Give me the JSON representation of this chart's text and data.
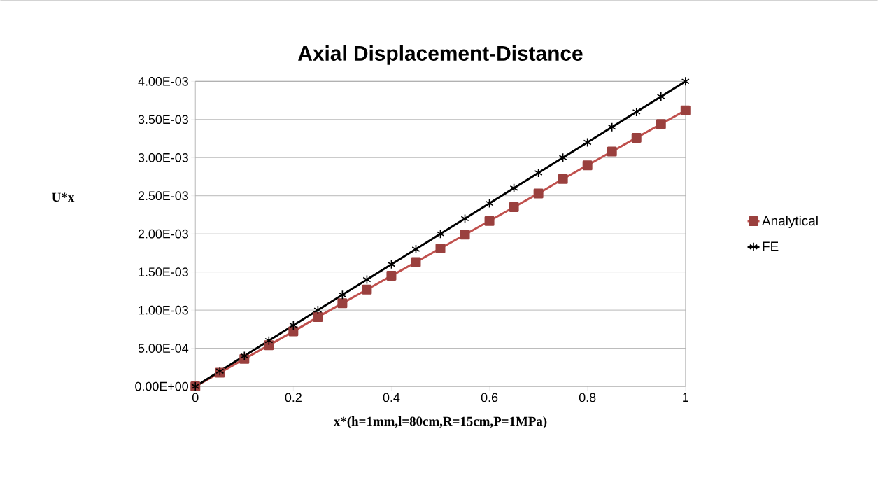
{
  "chart_data": {
    "type": "line",
    "title": "Axial Displacement-Distance",
    "xlabel": "x*(h=1mm,l=80cm,R=15cm,P=1MPa)",
    "ylabel": "U*x",
    "x": [
      0,
      0.05,
      0.1,
      0.15,
      0.2,
      0.25,
      0.3,
      0.35,
      0.4,
      0.45,
      0.5,
      0.55,
      0.6,
      0.65,
      0.7,
      0.75,
      0.8,
      0.85,
      0.9,
      0.95,
      1
    ],
    "series": [
      {
        "name": "Analytical",
        "color": "#c0504d",
        "marker": "square",
        "values": [
          0,
          0.00018,
          0.00036,
          0.00054,
          0.00072,
          0.00091,
          0.00109,
          0.00127,
          0.00145,
          0.00163,
          0.00181,
          0.00199,
          0.00217,
          0.00235,
          0.00253,
          0.00272,
          0.0029,
          0.00308,
          0.00326,
          0.00344,
          0.00362
        ]
      },
      {
        "name": "FE",
        "color": "#000000",
        "marker": "cross",
        "values": [
          0,
          0.0002,
          0.0004,
          0.0006,
          0.0008,
          0.001,
          0.0012,
          0.0014,
          0.0016,
          0.0018,
          0.002,
          0.0022,
          0.0024,
          0.0026,
          0.0028,
          0.003,
          0.0032,
          0.0034,
          0.0036,
          0.0038,
          0.004
        ]
      }
    ],
    "xlim": [
      0,
      1
    ],
    "xticks": [
      0,
      0.2,
      0.4,
      0.6,
      0.8,
      1
    ],
    "ylim": [
      0,
      0.004
    ],
    "yticks": [
      {
        "value": 0,
        "label": "0.00E+00"
      },
      {
        "value": 0.0005,
        "label": "5.00E-04"
      },
      {
        "value": 0.001,
        "label": "1.00E-03"
      },
      {
        "value": 0.0015,
        "label": "1.50E-03"
      },
      {
        "value": 0.002,
        "label": "2.00E-03"
      },
      {
        "value": 0.0025,
        "label": "2.50E-03"
      },
      {
        "value": 0.003,
        "label": "3.00E-03"
      },
      {
        "value": 0.0035,
        "label": "3.50E-03"
      },
      {
        "value": 0.004,
        "label": "4.00E-03"
      }
    ],
    "grid": "y",
    "legend": "right",
    "line_style": "solid"
  }
}
